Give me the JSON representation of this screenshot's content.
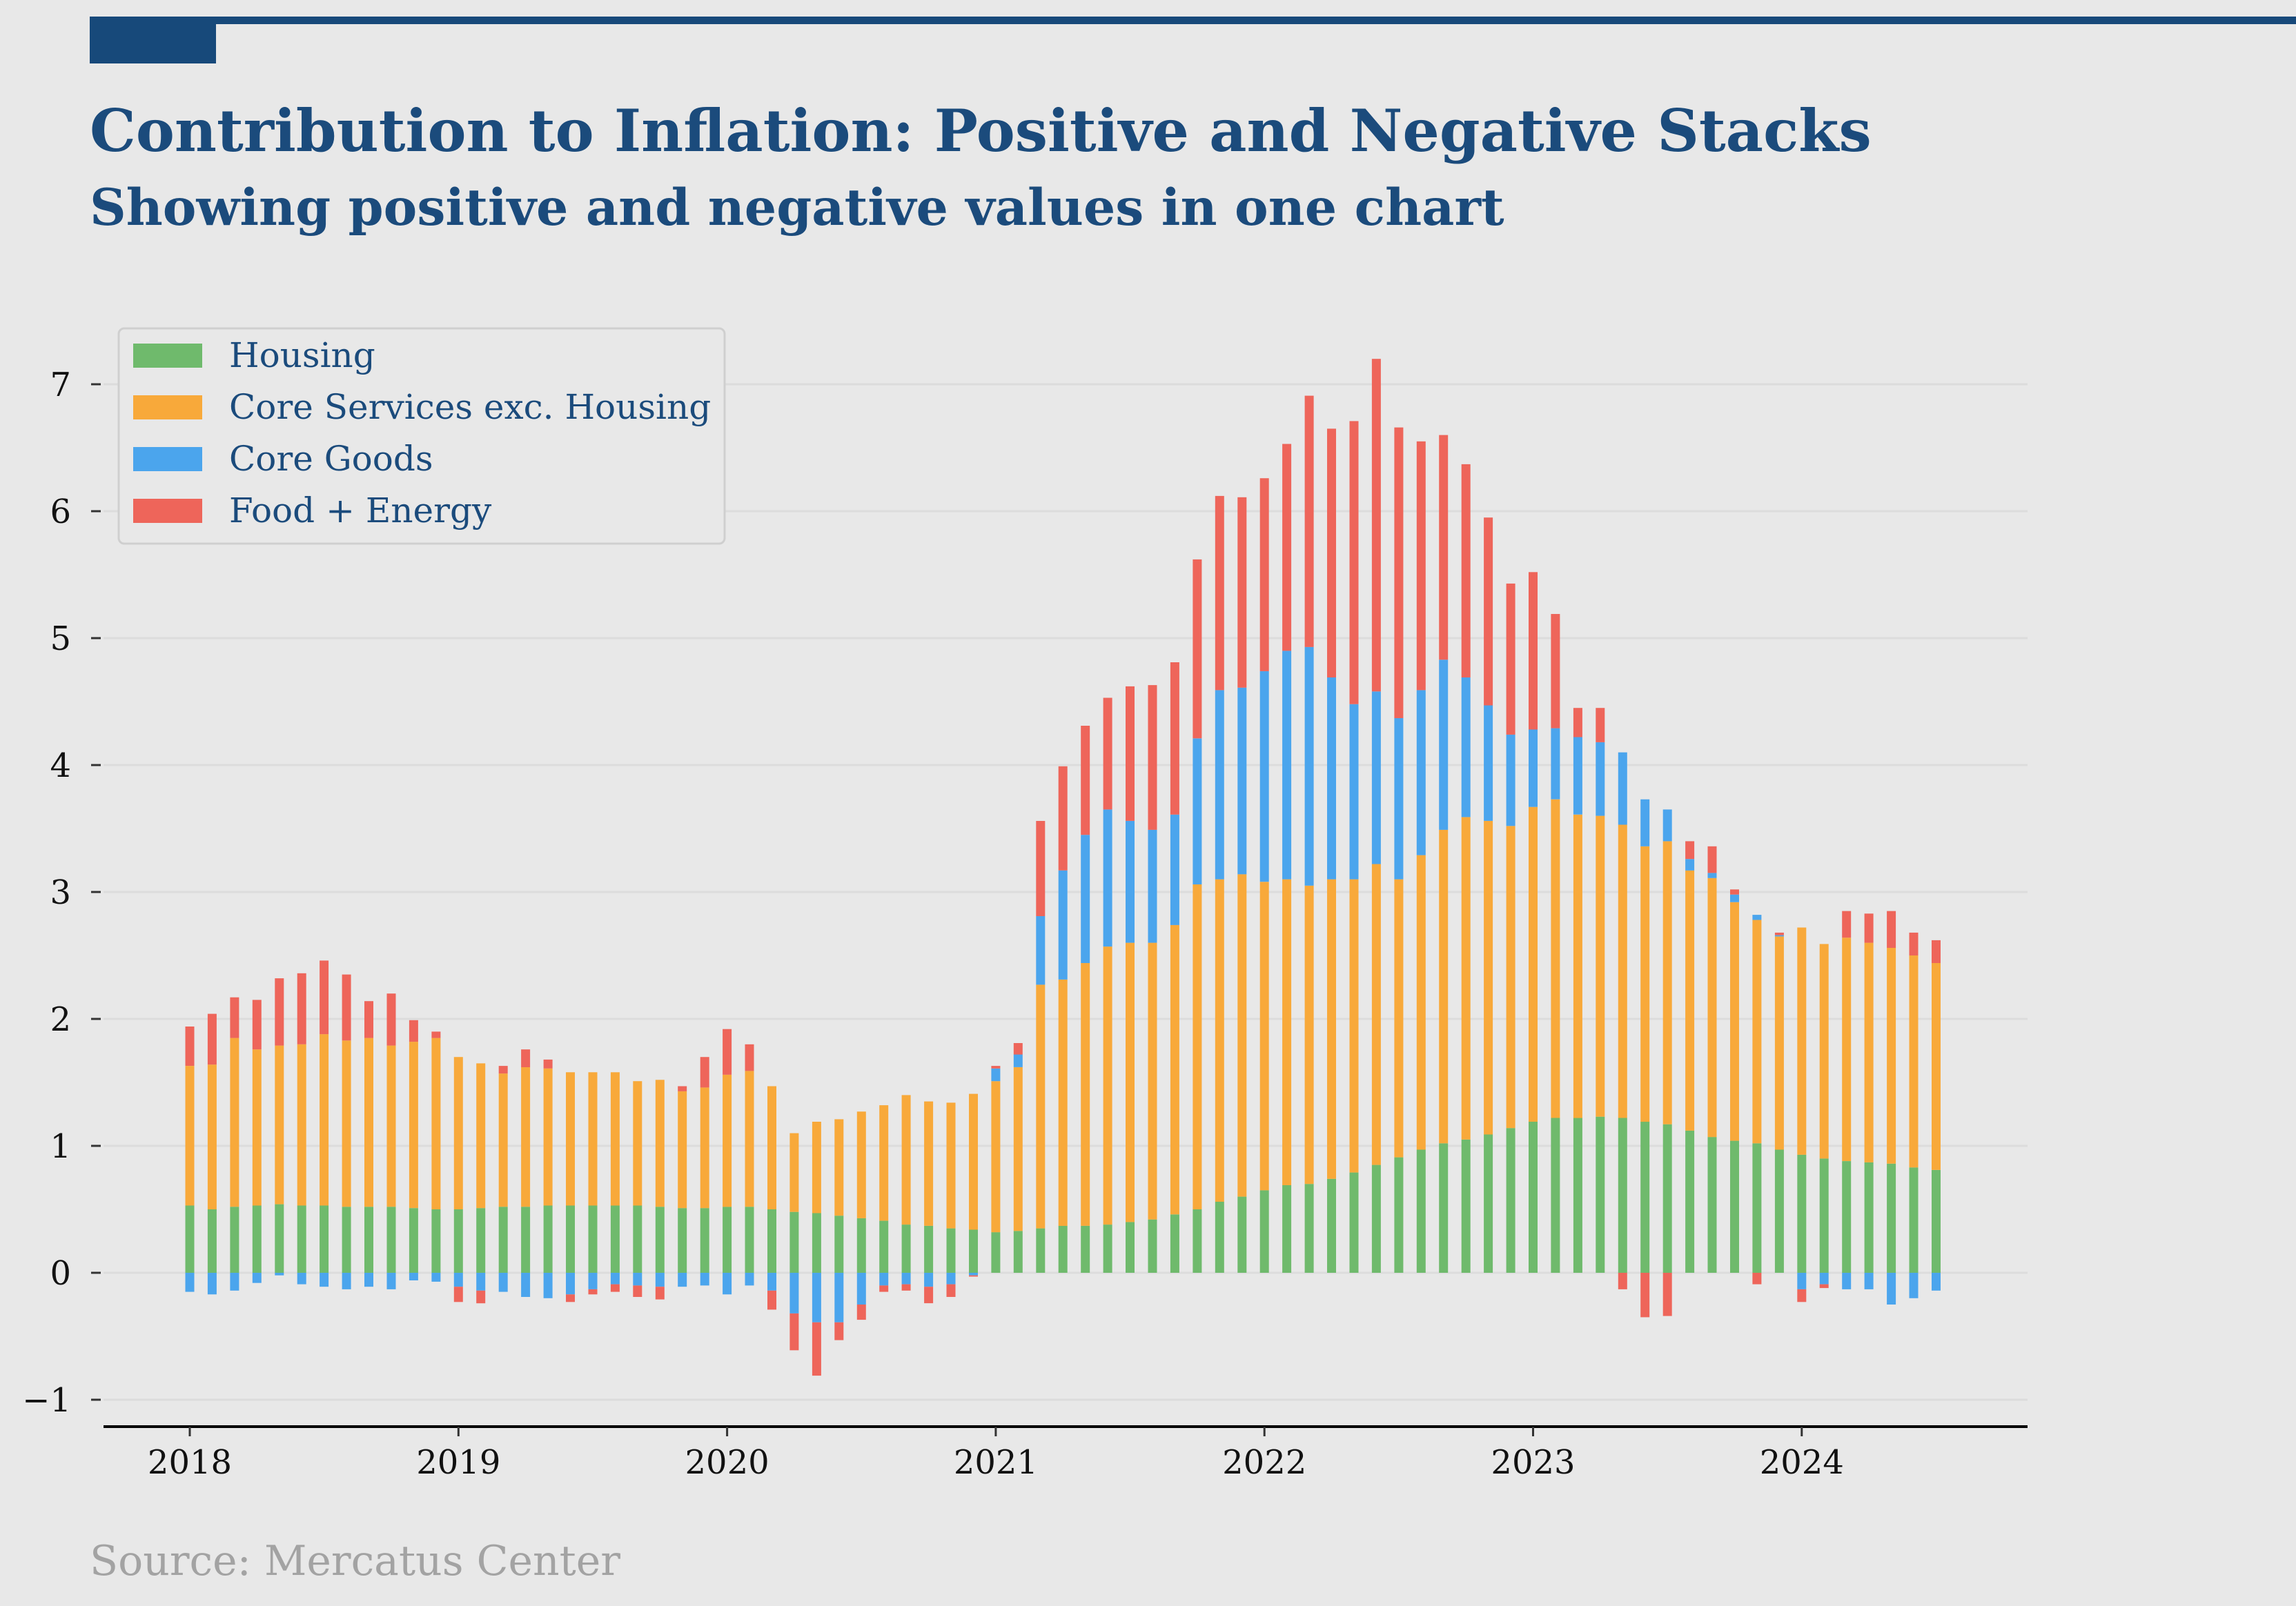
{
  "header": {
    "title": "Contribution to Inflation: Positive and Negative Stacks",
    "subtitle": "Showing positive and negative values in one chart"
  },
  "footer": {
    "source": "Source: Mercatus Center"
  },
  "colors": {
    "accent": "#17497a",
    "text": "#1b4b7c",
    "background": "#e8e8e8",
    "grid": "#dcdcdc"
  },
  "chart_data": {
    "type": "bar",
    "stacked": true,
    "title": "Contribution to Inflation: Positive and Negative Stacks",
    "subtitle": "Showing positive and negative values in one chart",
    "xlabel": "",
    "ylabel": "",
    "ylim": [
      -1.2,
      7.6
    ],
    "y_ticks": [
      -1,
      0,
      1,
      2,
      3,
      4,
      5,
      6,
      7
    ],
    "y_tick_labels": [
      "−1",
      "0",
      "1",
      "2",
      "3",
      "4",
      "5",
      "6",
      "7"
    ],
    "x_ticks": [
      "2018",
      "2019",
      "2020",
      "2021",
      "2022",
      "2023",
      "2024"
    ],
    "grid": "horizontal",
    "legend_position": "top-left",
    "frequency": "monthly",
    "x": [
      "2018-01",
      "2018-02",
      "2018-03",
      "2018-04",
      "2018-05",
      "2018-06",
      "2018-07",
      "2018-08",
      "2018-09",
      "2018-10",
      "2018-11",
      "2018-12",
      "2019-01",
      "2019-02",
      "2019-03",
      "2019-04",
      "2019-05",
      "2019-06",
      "2019-07",
      "2019-08",
      "2019-09",
      "2019-10",
      "2019-11",
      "2019-12",
      "2020-01",
      "2020-02",
      "2020-03",
      "2020-04",
      "2020-05",
      "2020-06",
      "2020-07",
      "2020-08",
      "2020-09",
      "2020-10",
      "2020-11",
      "2020-12",
      "2021-01",
      "2021-02",
      "2021-03",
      "2021-04",
      "2021-05",
      "2021-06",
      "2021-07",
      "2021-08",
      "2021-09",
      "2021-10",
      "2021-11",
      "2021-12",
      "2022-01",
      "2022-02",
      "2022-03",
      "2022-04",
      "2022-05",
      "2022-06",
      "2022-07",
      "2022-08",
      "2022-09",
      "2022-10",
      "2022-11",
      "2022-12",
      "2023-01",
      "2023-02",
      "2023-03",
      "2023-04",
      "2023-05",
      "2023-06",
      "2023-07",
      "2023-08",
      "2023-09",
      "2023-10",
      "2023-11",
      "2023-12",
      "2024-01",
      "2024-02",
      "2024-03",
      "2024-04",
      "2024-05",
      "2024-06",
      "2024-07"
    ],
    "series": [
      {
        "name": "Housing",
        "color": "#6fba6c",
        "values": [
          0.53,
          0.5,
          0.52,
          0.53,
          0.54,
          0.53,
          0.53,
          0.52,
          0.52,
          0.52,
          0.51,
          0.5,
          0.5,
          0.51,
          0.52,
          0.52,
          0.53,
          0.53,
          0.53,
          0.53,
          0.53,
          0.52,
          0.51,
          0.51,
          0.52,
          0.52,
          0.5,
          0.48,
          0.47,
          0.45,
          0.43,
          0.41,
          0.38,
          0.37,
          0.35,
          0.34,
          0.32,
          0.33,
          0.35,
          0.37,
          0.37,
          0.38,
          0.4,
          0.42,
          0.46,
          0.5,
          0.56,
          0.6,
          0.65,
          0.69,
          0.7,
          0.74,
          0.79,
          0.85,
          0.91,
          0.97,
          1.02,
          1.05,
          1.09,
          1.14,
          1.19,
          1.22,
          1.22,
          1.23,
          1.22,
          1.19,
          1.17,
          1.12,
          1.07,
          1.04,
          1.02,
          0.97,
          0.93,
          0.9,
          0.88,
          0.87,
          0.86,
          0.83,
          0.81
        ]
      },
      {
        "name": "Core Services exc. Housing",
        "color": "#f8a93a",
        "values": [
          1.1,
          1.14,
          1.33,
          1.23,
          1.25,
          1.27,
          1.35,
          1.31,
          1.33,
          1.27,
          1.31,
          1.35,
          1.2,
          1.14,
          1.05,
          1.1,
          1.08,
          1.05,
          1.05,
          1.05,
          0.98,
          1.0,
          0.92,
          0.95,
          1.04,
          1.07,
          0.97,
          0.62,
          0.72,
          0.76,
          0.84,
          0.91,
          1.02,
          0.98,
          0.99,
          1.07,
          1.19,
          1.29,
          1.92,
          1.94,
          2.07,
          2.19,
          2.2,
          2.18,
          2.28,
          2.56,
          2.54,
          2.54,
          2.43,
          2.41,
          2.35,
          2.36,
          2.31,
          2.37,
          2.19,
          2.32,
          2.47,
          2.54,
          2.47,
          2.38,
          2.48,
          2.51,
          2.39,
          2.37,
          2.31,
          2.17,
          2.23,
          2.05,
          2.04,
          1.88,
          1.76,
          1.68,
          1.79,
          1.69,
          1.76,
          1.73,
          1.7,
          1.67,
          1.63
        ]
      },
      {
        "name": "Core Goods",
        "color": "#4ba5ed",
        "values": [
          -0.15,
          -0.17,
          -0.14,
          -0.08,
          -0.02,
          -0.09,
          -0.11,
          -0.13,
          -0.11,
          -0.13,
          -0.06,
          -0.07,
          -0.11,
          -0.14,
          -0.15,
          -0.19,
          -0.2,
          -0.17,
          -0.13,
          -0.09,
          -0.1,
          -0.11,
          -0.11,
          -0.1,
          -0.17,
          -0.1,
          -0.14,
          -0.32,
          -0.39,
          -0.39,
          -0.25,
          -0.1,
          -0.09,
          -0.11,
          -0.09,
          -0.02,
          0.1,
          0.1,
          0.54,
          0.86,
          1.01,
          1.08,
          0.96,
          0.89,
          0.87,
          1.15,
          1.49,
          1.47,
          1.66,
          1.8,
          1.88,
          1.59,
          1.38,
          1.36,
          1.27,
          1.3,
          1.34,
          1.1,
          0.91,
          0.72,
          0.61,
          0.56,
          0.61,
          0.58,
          0.57,
          0.37,
          0.25,
          0.09,
          0.04,
          0.06,
          0.04,
          0.01,
          -0.13,
          -0.09,
          -0.13,
          -0.13,
          -0.25,
          -0.2,
          -0.14
        ]
      },
      {
        "name": "Food + Energy",
        "color": "#ee655a",
        "values": [
          0.31,
          0.4,
          0.32,
          0.39,
          0.53,
          0.56,
          0.58,
          0.52,
          0.29,
          0.41,
          0.17,
          0.05,
          -0.12,
          -0.1,
          0.06,
          0.14,
          0.07,
          -0.06,
          -0.04,
          -0.06,
          -0.09,
          -0.1,
          0.04,
          0.24,
          0.36,
          0.21,
          -0.15,
          -0.29,
          -0.42,
          -0.14,
          -0.12,
          -0.05,
          -0.05,
          -0.13,
          -0.1,
          -0.01,
          0.02,
          0.09,
          0.75,
          0.82,
          0.86,
          0.88,
          1.06,
          1.14,
          1.2,
          1.41,
          1.53,
          1.5,
          1.52,
          1.63,
          1.98,
          1.96,
          2.23,
          2.62,
          2.29,
          1.96,
          1.77,
          1.68,
          1.48,
          1.19,
          1.24,
          0.9,
          0.23,
          0.27,
          -0.13,
          -0.35,
          -0.34,
          0.14,
          0.21,
          0.04,
          -0.09,
          0.02,
          -0.1,
          -0.03,
          0.21,
          0.23,
          0.29,
          0.18,
          0.18
        ]
      }
    ]
  }
}
